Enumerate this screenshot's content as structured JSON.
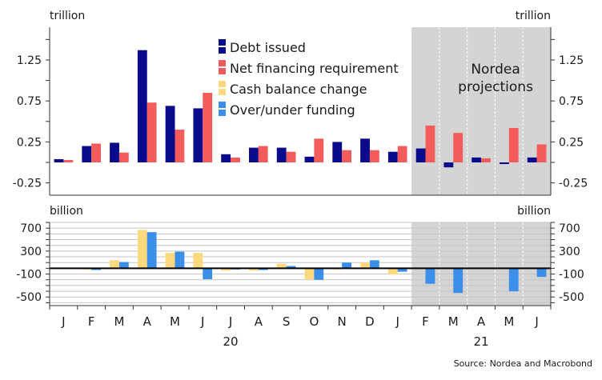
{
  "chart_data": [
    {
      "type": "bar",
      "panel": "top",
      "unit_label": "trillion",
      "ylim": [
        -0.4,
        1.65
      ],
      "ticks": [
        -0.25,
        0.25,
        0.75,
        1.25
      ],
      "tick_labels": [
        "-0.25",
        "0.25",
        "0.75",
        "1.25"
      ],
      "categories": [
        "J",
        "F",
        "M",
        "A",
        "M",
        "J",
        "J",
        "A",
        "S",
        "O",
        "N",
        "D",
        "J",
        "F",
        "M",
        "A",
        "M",
        "J"
      ],
      "series": [
        {
          "name": "Debt issued",
          "color": "#0a0a8c",
          "values": [
            0.04,
            0.2,
            0.24,
            1.37,
            0.69,
            0.66,
            0.1,
            0.18,
            0.18,
            0.07,
            0.25,
            0.29,
            0.13,
            0.17,
            -0.06,
            0.06,
            -0.02,
            0.06
          ]
        },
        {
          "name": "Net financing requirement",
          "color": "#f45b5b",
          "values": [
            0.03,
            0.23,
            0.12,
            0.73,
            0.4,
            0.85,
            0.06,
            0.2,
            0.13,
            0.29,
            0.15,
            0.15,
            0.2,
            0.45,
            0.36,
            0.05,
            0.42,
            0.22
          ]
        }
      ],
      "legend": [
        {
          "name": "Debt issued",
          "color": "#0a0a8c"
        },
        {
          "name": "Net financing requirement",
          "color": "#f45b5b"
        },
        {
          "name": "Cash balance change",
          "color": "#fcd97e"
        },
        {
          "name": "Over/under funding",
          "color": "#3b8fe8"
        }
      ],
      "shaded_from_index": 13,
      "annotation": "Nordea\nprojections"
    },
    {
      "type": "bar",
      "panel": "bottom",
      "unit_label": "billion",
      "ylim": [
        -650,
        800
      ],
      "ticks": [
        -500,
        -100,
        300,
        700
      ],
      "tick_labels": [
        "-500",
        "-100",
        "300",
        "700"
      ],
      "categories": [
        "J",
        "F",
        "M",
        "A",
        "M",
        "J",
        "J",
        "A",
        "S",
        "O",
        "N",
        "D",
        "J",
        "F",
        "M",
        "A",
        "M",
        "J"
      ],
      "series": [
        {
          "name": "Cash balance change",
          "color": "#fcd97e",
          "values": [
            0,
            -20,
            140,
            670,
            270,
            270,
            -40,
            -40,
            80,
            -190,
            -20,
            100,
            -110,
            0,
            0,
            0,
            0,
            0
          ]
        },
        {
          "name": "Over/under funding",
          "color": "#3b8fe8",
          "values": [
            0,
            -30,
            110,
            630,
            290,
            -190,
            -20,
            -30,
            40,
            -200,
            100,
            140,
            -60,
            -270,
            -430,
            10,
            -400,
            -150
          ]
        }
      ],
      "shaded_from_index": 13
    }
  ],
  "x_axis": {
    "months": [
      "J",
      "F",
      "M",
      "A",
      "M",
      "J",
      "J",
      "A",
      "S",
      "O",
      "N",
      "D",
      "J",
      "F",
      "M",
      "A",
      "M",
      "J"
    ],
    "year_labels": [
      {
        "label": "20",
        "center_index": 6
      },
      {
        "label": "21",
        "center_index": 15
      }
    ]
  },
  "source": "Source: Nordea and Macrobond"
}
